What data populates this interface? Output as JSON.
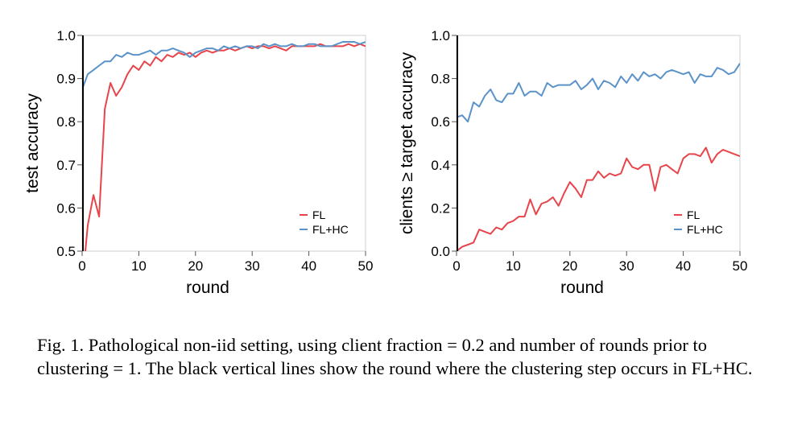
{
  "chart_data": [
    {
      "type": "line",
      "xlabel": "round",
      "ylabel": "test accuracy",
      "xlim": [
        0,
        50
      ],
      "ylim": [
        0.5,
        1.0
      ],
      "xticks": [
        "0",
        "10",
        "20",
        "30",
        "40",
        "50"
      ],
      "yticks": [
        "0.5",
        "0.6",
        "0.7",
        "0.8",
        "0.9",
        "1.0"
      ],
      "vline_x": 0,
      "legend_position": "bottom-right",
      "series": [
        {
          "name": "FL",
          "color": "#e8444b",
          "x": [
            0,
            1,
            2,
            3,
            4,
            5,
            6,
            7,
            8,
            9,
            10,
            11,
            12,
            13,
            14,
            15,
            16,
            17,
            18,
            19,
            20,
            21,
            22,
            23,
            24,
            25,
            26,
            27,
            28,
            29,
            30,
            31,
            32,
            33,
            34,
            35,
            36,
            37,
            38,
            39,
            40,
            41,
            42,
            43,
            44,
            45,
            46,
            47,
            48,
            49,
            50
          ],
          "y": [
            0.42,
            0.56,
            0.63,
            0.58,
            0.83,
            0.89,
            0.86,
            0.88,
            0.91,
            0.93,
            0.92,
            0.94,
            0.93,
            0.95,
            0.94,
            0.955,
            0.95,
            0.96,
            0.955,
            0.96,
            0.95,
            0.96,
            0.965,
            0.96,
            0.965,
            0.965,
            0.97,
            0.965,
            0.97,
            0.975,
            0.97,
            0.975,
            0.975,
            0.97,
            0.975,
            0.97,
            0.965,
            0.975,
            0.975,
            0.975,
            0.975,
            0.975,
            0.98,
            0.975,
            0.975,
            0.975,
            0.975,
            0.98,
            0.975,
            0.98,
            0.975
          ]
        },
        {
          "name": "FL+HC",
          "color": "#5b93c9",
          "x": [
            0,
            1,
            2,
            3,
            4,
            5,
            6,
            7,
            8,
            9,
            10,
            11,
            12,
            13,
            14,
            15,
            16,
            17,
            18,
            19,
            20,
            21,
            22,
            23,
            24,
            25,
            26,
            27,
            28,
            29,
            30,
            31,
            32,
            33,
            34,
            35,
            36,
            37,
            38,
            39,
            40,
            41,
            42,
            43,
            44,
            45,
            46,
            47,
            48,
            49,
            50
          ],
          "y": [
            0.875,
            0.91,
            0.92,
            0.93,
            0.94,
            0.94,
            0.955,
            0.95,
            0.96,
            0.955,
            0.955,
            0.96,
            0.965,
            0.955,
            0.965,
            0.965,
            0.97,
            0.965,
            0.96,
            0.95,
            0.96,
            0.965,
            0.97,
            0.97,
            0.965,
            0.975,
            0.97,
            0.975,
            0.97,
            0.975,
            0.975,
            0.97,
            0.98,
            0.975,
            0.98,
            0.975,
            0.975,
            0.98,
            0.975,
            0.975,
            0.98,
            0.98,
            0.975,
            0.975,
            0.975,
            0.98,
            0.985,
            0.985,
            0.985,
            0.98,
            0.985
          ]
        }
      ]
    },
    {
      "type": "line",
      "xlabel": "round",
      "ylabel": "clients ≥ target accuracy",
      "xlim": [
        0,
        50
      ],
      "ylim": [
        0.0,
        1.0
      ],
      "xticks": [
        "0",
        "10",
        "20",
        "30",
        "40",
        "50"
      ],
      "yticks": [
        "0.0",
        "0.2",
        "0.4",
        "0.6",
        "0.8",
        "1.0"
      ],
      "vline_x": 0,
      "legend_position": "bottom-right",
      "series": [
        {
          "name": "FL",
          "color": "#e8444b",
          "x": [
            0,
            1,
            2,
            3,
            4,
            5,
            6,
            7,
            8,
            9,
            10,
            11,
            12,
            13,
            14,
            15,
            16,
            17,
            18,
            19,
            20,
            21,
            22,
            23,
            24,
            25,
            26,
            27,
            28,
            29,
            30,
            31,
            32,
            33,
            34,
            35,
            36,
            37,
            38,
            39,
            40,
            41,
            42,
            43,
            44,
            45,
            46,
            47,
            48,
            49,
            50
          ],
          "y": [
            0.0,
            0.02,
            0.03,
            0.04,
            0.1,
            0.09,
            0.08,
            0.11,
            0.1,
            0.13,
            0.14,
            0.16,
            0.16,
            0.24,
            0.17,
            0.22,
            0.23,
            0.25,
            0.21,
            0.27,
            0.32,
            0.29,
            0.25,
            0.33,
            0.33,
            0.37,
            0.34,
            0.36,
            0.35,
            0.36,
            0.43,
            0.39,
            0.38,
            0.4,
            0.4,
            0.28,
            0.39,
            0.4,
            0.38,
            0.36,
            0.43,
            0.45,
            0.45,
            0.44,
            0.48,
            0.41,
            0.45,
            0.47,
            0.46,
            0.45,
            0.44
          ]
        },
        {
          "name": "FL+HC",
          "color": "#5b93c9",
          "x": [
            0,
            1,
            2,
            3,
            4,
            5,
            6,
            7,
            8,
            9,
            10,
            11,
            12,
            13,
            14,
            15,
            16,
            17,
            18,
            19,
            20,
            21,
            22,
            23,
            24,
            25,
            26,
            27,
            28,
            29,
            30,
            31,
            32,
            33,
            34,
            35,
            36,
            37,
            38,
            39,
            40,
            41,
            42,
            43,
            44,
            45,
            46,
            47,
            48,
            49,
            50
          ],
          "y": [
            0.62,
            0.63,
            0.6,
            0.69,
            0.67,
            0.72,
            0.75,
            0.7,
            0.69,
            0.73,
            0.73,
            0.78,
            0.72,
            0.74,
            0.74,
            0.72,
            0.78,
            0.76,
            0.77,
            0.77,
            0.77,
            0.79,
            0.75,
            0.77,
            0.8,
            0.75,
            0.79,
            0.78,
            0.76,
            0.81,
            0.78,
            0.82,
            0.79,
            0.83,
            0.81,
            0.82,
            0.8,
            0.83,
            0.84,
            0.83,
            0.82,
            0.83,
            0.78,
            0.82,
            0.81,
            0.81,
            0.85,
            0.84,
            0.82,
            0.83,
            0.87
          ]
        }
      ]
    }
  ],
  "caption": "Fig. 1.  Pathological non-iid setting, using client fraction = 0.2 and number of rounds prior to clustering = 1. The black vertical lines show the round where the clustering step occurs in FL+HC."
}
